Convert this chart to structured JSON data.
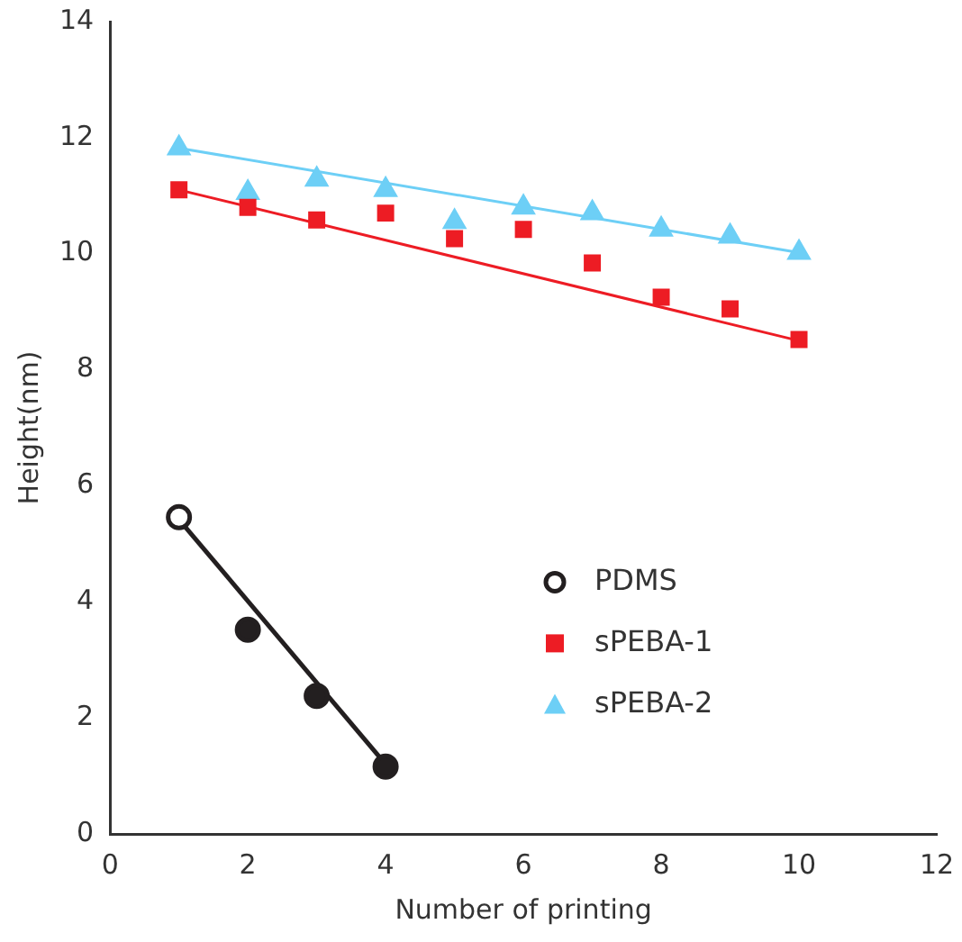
{
  "chart_data": {
    "type": "scatter",
    "xlabel": "Number of printing",
    "ylabel": "Height(nm)",
    "xlim": [
      0,
      12
    ],
    "xticks": [
      0,
      2,
      4,
      6,
      8,
      10,
      12
    ],
    "ylim": [
      0,
      14
    ],
    "yticks": [
      0,
      2,
      4,
      6,
      8,
      10,
      12,
      14
    ],
    "grid": false,
    "legend": "right",
    "series": [
      {
        "name": "PDMS",
        "type": "scatter",
        "marker": "circle",
        "color": "#231f20",
        "colors": [
          "#ffffff",
          "#231f20",
          "#231f20",
          "#231f20"
        ],
        "x": [
          1,
          2,
          3,
          4
        ],
        "values": [
          5.46,
          3.52,
          2.38,
          1.16
        ]
      },
      {
        "name": "sPEBA-1",
        "type": "scatter",
        "marker": "square",
        "color": "#ed1c24",
        "x": [
          1,
          2,
          3,
          4,
          5,
          6,
          7,
          8,
          9,
          10
        ],
        "values": [
          11.1,
          10.8,
          10.58,
          10.7,
          10.26,
          10.42,
          9.84,
          9.25,
          9.05,
          8.52
        ]
      },
      {
        "name": "sPEBA-2",
        "type": "scatter",
        "marker": "triangle",
        "color": "#6dcff6",
        "x": [
          1,
          2,
          3,
          4,
          5,
          6,
          7,
          8,
          9,
          10
        ],
        "values": [
          11.82,
          11.05,
          11.28,
          11.1,
          10.55,
          10.8,
          10.7,
          10.42,
          10.3,
          10.02
        ]
      },
      {
        "type": "line",
        "marker": "none",
        "color": "#231f20",
        "x": [
          1,
          4
        ],
        "values": [
          5.42,
          1.2
        ]
      },
      {
        "type": "line",
        "marker": "none",
        "color": "#ed1c24",
        "x": [
          1,
          10
        ],
        "values": [
          11.1,
          8.5
        ]
      },
      {
        "type": "line",
        "marker": "none",
        "color": "#6dcff6",
        "x": [
          1,
          10
        ],
        "values": [
          11.82,
          10.02
        ]
      }
    ]
  }
}
